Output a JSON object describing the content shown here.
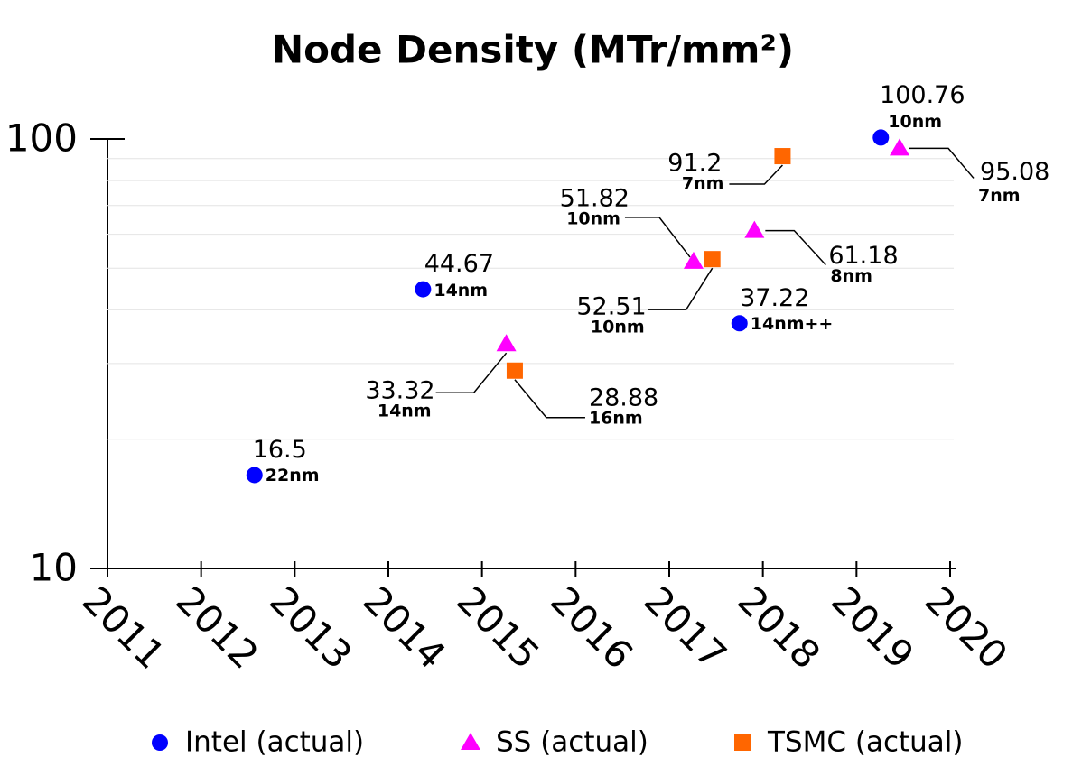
{
  "chart_data": {
    "type": "scatter",
    "title": "Node Density (MTr/mm²)",
    "xlim": [
      2011,
      2020
    ],
    "xticks": [
      2011,
      2012,
      2013,
      2014,
      2015,
      2016,
      2017,
      2018,
      2019,
      2020
    ],
    "ylim": [
      10,
      100
    ],
    "yticks": [
      10,
      100
    ],
    "y_log_scale": true,
    "y_minor_grid": [
      20,
      30,
      40,
      50,
      60,
      70,
      80,
      90
    ],
    "legend_position": "bottom",
    "series": [
      {
        "name": "Intel (actual)",
        "color": "#0000ff",
        "marker": "circle",
        "x": [
          2012.57,
          2014.37,
          2017.75,
          2019.26
        ],
        "values": [
          16.5,
          44.67,
          37.22,
          100.76
        ],
        "node_labels": [
          "22nm",
          "14nm",
          "14nm++",
          "10nm"
        ]
      },
      {
        "name": "SS (actual)",
        "color": "#ff00ff",
        "marker": "triangle",
        "x": [
          2015.26,
          2017.26,
          2017.91,
          2019.46
        ],
        "values": [
          33.32,
          51.82,
          61.18,
          95.08
        ],
        "node_labels": [
          "14nm",
          "10nm",
          "8nm",
          "7nm"
        ]
      },
      {
        "name": "TSMC (actual)",
        "color": "#ff6600",
        "marker": "square",
        "x": [
          2015.35,
          2017.46,
          2018.21
        ],
        "values": [
          28.88,
          52.51,
          91.2
        ],
        "node_labels": [
          "16nm",
          "10nm",
          "7nm"
        ]
      }
    ]
  }
}
